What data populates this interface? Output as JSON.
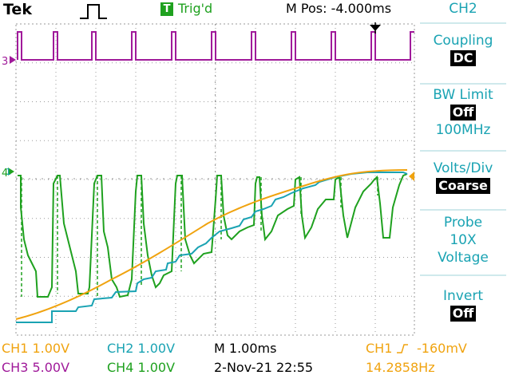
{
  "header": {
    "brand": "Tek",
    "trigger_badge": "T",
    "trigger_status": "Trig'd",
    "position_readout": "M Pos: -4.000ms"
  },
  "sidebar": {
    "title": "CH2",
    "coupling_label": "Coupling",
    "coupling_value": "DC",
    "bw_label": "BW Limit",
    "bw_value": "Off",
    "bw_freq": "100MHz",
    "voltsdiv_label": "Volts/Div",
    "voltsdiv_value": "Coarse",
    "probe_label": "Probe",
    "probe_value": "10X",
    "probe_type": "Voltage",
    "invert_label": "Invert",
    "invert_value": "Off"
  },
  "markers": {
    "ch3": "3",
    "ch4": "4",
    "ch1": "1"
  },
  "status": {
    "ch1": "CH1  1.00V",
    "ch2": "CH2  1.00V",
    "ch3": "CH3  5.00V",
    "ch4": "CH4  1.00V",
    "timebase": "M 1.00ms",
    "datetime": "2-Nov-21 22:55",
    "trigger_source": "CH1",
    "trigger_level": "-160mV",
    "frequency": "14.2858Hz"
  },
  "colors": {
    "ch1": "#f0a30f",
    "ch2": "#1aa3b3",
    "ch3": "#a01a9a",
    "ch4": "#1fa11f",
    "grid": "#9a9a9a"
  }
}
